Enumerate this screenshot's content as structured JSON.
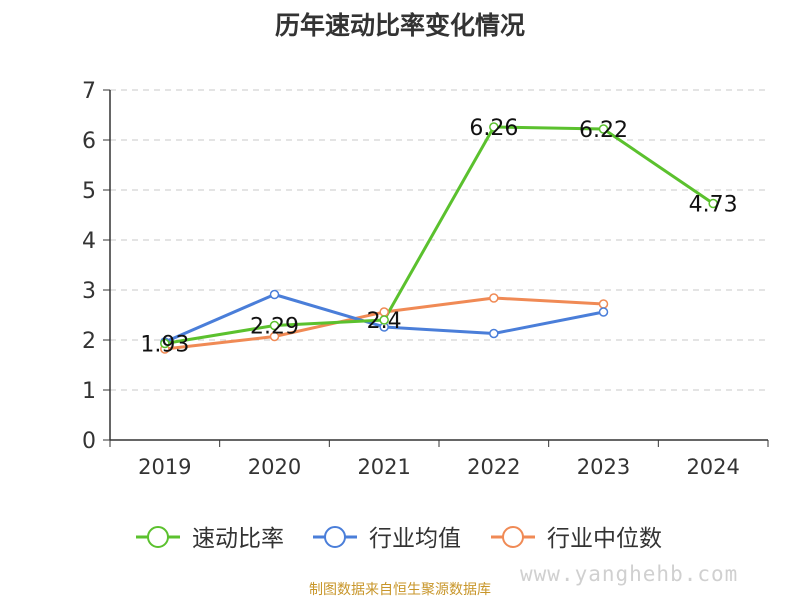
{
  "chart_data": {
    "type": "line",
    "title": "历年速动比率变化情况",
    "categories": [
      "2019",
      "2020",
      "2021",
      "2022",
      "2023",
      "2024"
    ],
    "ylim": [
      0,
      7
    ],
    "yticks": [
      "0",
      "1",
      "2",
      "3",
      "4",
      "5",
      "6",
      "7"
    ],
    "grid": true,
    "legend_position": "bottom",
    "series": [
      {
        "name": "速动比率",
        "color": "#5bc12e",
        "values": [
          1.93,
          2.29,
          2.4,
          6.26,
          6.22,
          4.73
        ],
        "labels": [
          "1.93",
          "2.29",
          "2.4",
          "6.26",
          "6.22",
          "4.73"
        ]
      },
      {
        "name": "行业均值",
        "color": "#4a7ed9",
        "values": [
          1.96,
          2.91,
          2.26,
          2.13,
          2.56,
          null
        ]
      },
      {
        "name": "行业中位数",
        "color": "#f08a55",
        "values": [
          1.82,
          2.07,
          2.56,
          2.84,
          2.72,
          null
        ]
      }
    ]
  },
  "footer": {
    "source": "制图数据来自恒生聚源数据库"
  },
  "watermark": "www.yanghehb.com"
}
